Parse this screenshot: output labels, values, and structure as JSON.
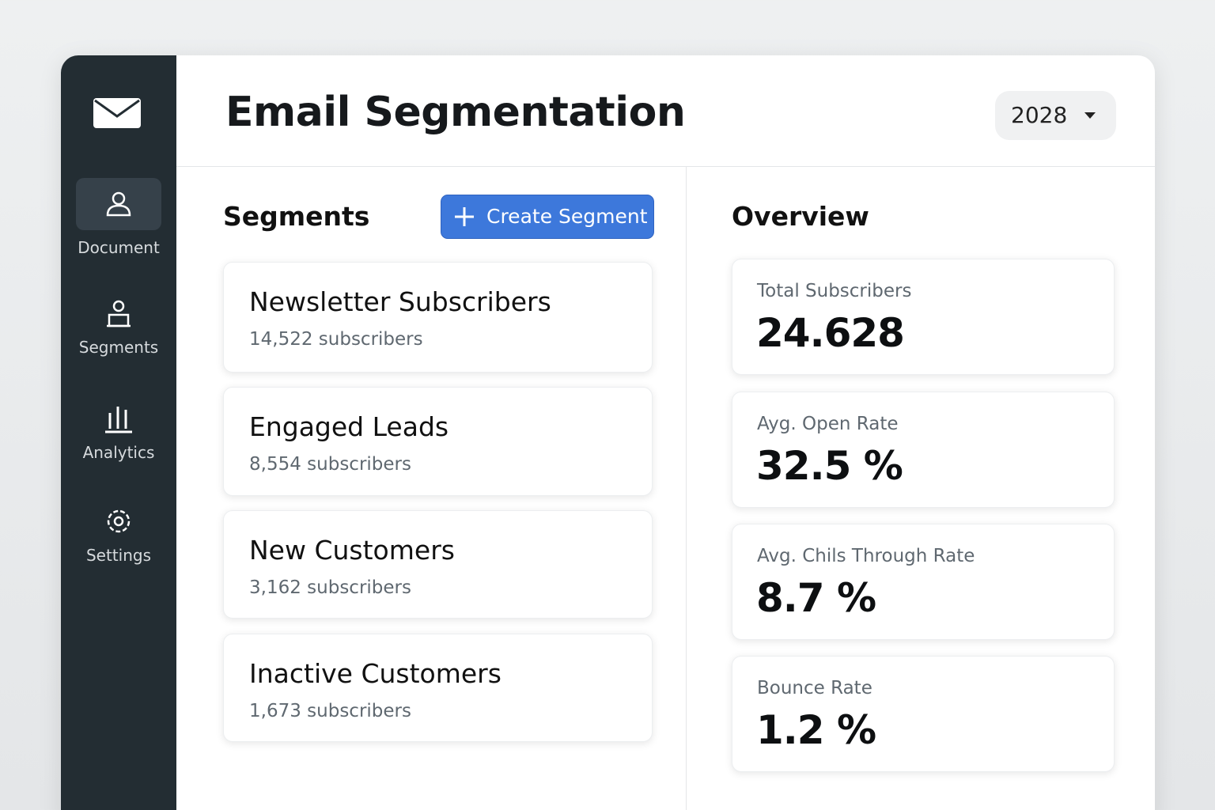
{
  "sidebar": {
    "items": [
      {
        "label": "Document"
      },
      {
        "label": "Segments"
      },
      {
        "label": "Analytics"
      },
      {
        "label": "Settings"
      }
    ]
  },
  "header": {
    "title": "Email Segmentation",
    "year": "2028"
  },
  "segments": {
    "heading": "Segments",
    "button": "Create Segment",
    "items": [
      {
        "name": "Newsletter Subscribers",
        "count": "14,522 subscribers"
      },
      {
        "name": "Engaged Leads",
        "count": "8,554 subscribers"
      },
      {
        "name": "New Customers",
        "count": "3,162 subscribers"
      },
      {
        "name": "Inactive Customers",
        "count": "1,673 subscribers"
      }
    ]
  },
  "overview": {
    "heading": "Overview",
    "metrics": [
      {
        "label": "Total Subscribers",
        "value": "24.628"
      },
      {
        "label": "Ayg. Open Rate",
        "value": "32.5 %"
      },
      {
        "label": "Avg. Chils Through Rate",
        "value": "8.7 %"
      },
      {
        "label": "Bounce Rate",
        "value": "1.2 %"
      }
    ]
  }
}
